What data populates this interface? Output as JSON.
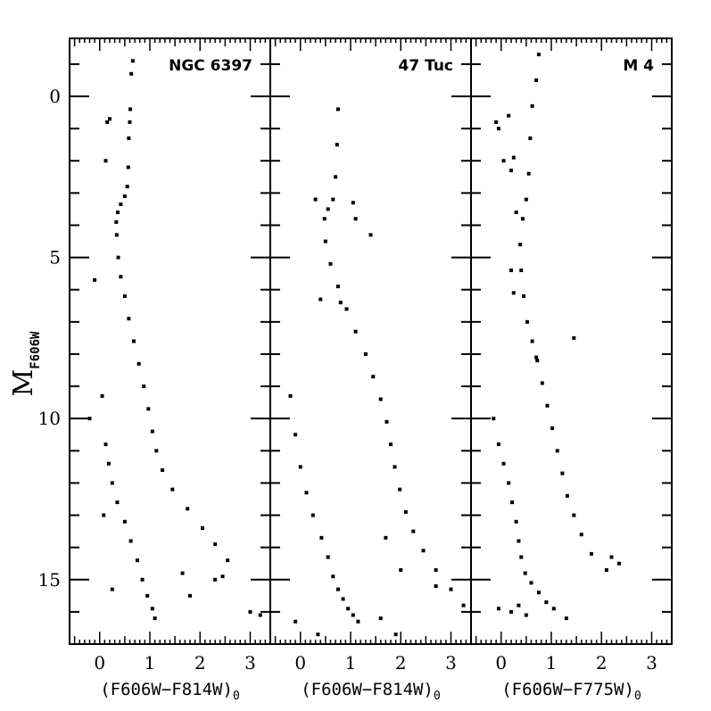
{
  "chart_data": {
    "type": "scatter",
    "ylabel": "M",
    "ylabel_sub": "F606W",
    "y_inverted": true,
    "ylim": [
      17,
      -1.8
    ],
    "xlim": [
      -0.6,
      3.4
    ],
    "xticks": [
      "0",
      "1",
      "2",
      "3"
    ],
    "yticks": [
      "0",
      "5",
      "10",
      "15"
    ],
    "panels": [
      {
        "title": "NGC 6397",
        "xlabel": "(F606W−F814W)",
        "xlabel_sub": "0",
        "series": [
          {
            "name": "",
            "points": [
              [
                0.66,
                -1.1
              ],
              [
                0.63,
                -0.7
              ],
              [
                0.61,
                0.4
              ],
              [
                0.6,
                0.8
              ],
              [
                0.58,
                1.3
              ],
              [
                0.57,
                2.2
              ],
              [
                0.55,
                2.8
              ],
              [
                0.5,
                3.1
              ],
              [
                0.42,
                3.35
              ],
              [
                0.36,
                3.6
              ],
              [
                0.33,
                3.9
              ],
              [
                0.34,
                4.3
              ],
              [
                0.37,
                5.0
              ],
              [
                0.42,
                5.6
              ],
              [
                0.5,
                6.2
              ],
              [
                0.58,
                6.9
              ],
              [
                0.68,
                7.6
              ],
              [
                0.78,
                8.3
              ],
              [
                0.88,
                9.0
              ],
              [
                0.97,
                9.7
              ],
              [
                1.05,
                10.4
              ],
              [
                1.13,
                11.0
              ],
              [
                1.25,
                11.6
              ],
              [
                1.45,
                12.2
              ],
              [
                1.75,
                12.8
              ],
              [
                2.05,
                13.4
              ],
              [
                2.3,
                13.9
              ],
              [
                2.55,
                14.4
              ],
              [
                0.12,
                10.8
              ],
              [
                0.18,
                11.4
              ],
              [
                0.25,
                12.0
              ],
              [
                0.35,
                12.6
              ],
              [
                0.5,
                13.2
              ],
              [
                0.62,
                13.8
              ],
              [
                0.75,
                14.4
              ],
              [
                0.85,
                15.0
              ],
              [
                0.95,
                15.5
              ],
              [
                1.05,
                15.9
              ],
              [
                1.1,
                16.2
              ],
              [
                0.15,
                0.8
              ],
              [
                0.12,
                2.0
              ],
              [
                0.2,
                0.7
              ],
              [
                -0.1,
                5.7
              ],
              [
                0.05,
                9.3
              ],
              [
                -0.2,
                10.0
              ],
              [
                0.08,
                13.0
              ],
              [
                0.25,
                15.3
              ],
              [
                1.65,
                14.8
              ],
              [
                2.3,
                15.0
              ],
              [
                2.45,
                14.9
              ],
              [
                1.8,
                15.5
              ],
              [
                3.0,
                16.0
              ],
              [
                3.2,
                16.1
              ]
            ]
          }
        ]
      },
      {
        "title": "47 Tuc",
        "xlabel": "(F606W−F814W)",
        "xlabel_sub": "0",
        "series": [
          {
            "name": "",
            "points": [
              [
                0.75,
                0.4
              ],
              [
                0.73,
                1.5
              ],
              [
                0.7,
                2.5
              ],
              [
                0.65,
                3.2
              ],
              [
                0.55,
                3.5
              ],
              [
                0.48,
                3.8
              ],
              [
                0.5,
                4.5
              ],
              [
                0.6,
                5.2
              ],
              [
                0.75,
                5.9
              ],
              [
                0.92,
                6.6
              ],
              [
                1.1,
                7.3
              ],
              [
                1.3,
                8.0
              ],
              [
                1.45,
                8.7
              ],
              [
                1.6,
                9.4
              ],
              [
                1.72,
                10.1
              ],
              [
                1.8,
                10.8
              ],
              [
                1.88,
                11.5
              ],
              [
                1.98,
                12.2
              ],
              [
                2.1,
                12.9
              ],
              [
                2.25,
                13.5
              ],
              [
                2.45,
                14.1
              ],
              [
                2.7,
                14.7
              ],
              [
                3.0,
                15.3
              ],
              [
                3.25,
                15.8
              ],
              [
                -0.2,
                9.3
              ],
              [
                -0.1,
                10.5
              ],
              [
                0.0,
                11.5
              ],
              [
                0.12,
                12.3
              ],
              [
                0.25,
                13.0
              ],
              [
                0.42,
                13.7
              ],
              [
                0.55,
                14.3
              ],
              [
                0.65,
                14.9
              ],
              [
                0.75,
                15.3
              ],
              [
                0.85,
                15.6
              ],
              [
                0.95,
                15.9
              ],
              [
                1.05,
                16.1
              ],
              [
                1.15,
                16.3
              ],
              [
                0.3,
                3.2
              ],
              [
                0.4,
                6.3
              ],
              [
                1.05,
                3.3
              ],
              [
                1.1,
                3.8
              ],
              [
                1.4,
                4.3
              ],
              [
                0.8,
                6.4
              ],
              [
                1.7,
                13.7
              ],
              [
                2.0,
                14.7
              ],
              [
                -0.1,
                16.3
              ],
              [
                0.35,
                16.7
              ],
              [
                1.6,
                16.2
              ],
              [
                1.9,
                16.7
              ],
              [
                2.7,
                15.2
              ]
            ]
          }
        ]
      },
      {
        "title": "M 4",
        "xlabel": "(F606W−F775W)",
        "xlabel_sub": "0",
        "series": [
          {
            "name": "",
            "points": [
              [
                0.75,
                -1.3
              ],
              [
                0.7,
                -0.5
              ],
              [
                0.62,
                0.3
              ],
              [
                0.58,
                1.3
              ],
              [
                0.55,
                2.4
              ],
              [
                0.5,
                3.2
              ],
              [
                0.43,
                3.8
              ],
              [
                0.38,
                4.6
              ],
              [
                0.4,
                5.4
              ],
              [
                0.45,
                6.2
              ],
              [
                0.52,
                7.0
              ],
              [
                0.62,
                7.6
              ],
              [
                0.72,
                8.2
              ],
              [
                0.82,
                8.9
              ],
              [
                0.92,
                9.6
              ],
              [
                1.02,
                10.3
              ],
              [
                1.12,
                11.0
              ],
              [
                1.22,
                11.7
              ],
              [
                1.32,
                12.4
              ],
              [
                1.45,
                13.0
              ],
              [
                1.6,
                13.6
              ],
              [
                1.8,
                14.2
              ],
              [
                2.1,
                14.7
              ],
              [
                -0.15,
                10.0
              ],
              [
                -0.05,
                10.8
              ],
              [
                0.05,
                11.4
              ],
              [
                0.15,
                12.0
              ],
              [
                0.22,
                12.6
              ],
              [
                0.3,
                13.2
              ],
              [
                0.35,
                13.8
              ],
              [
                0.4,
                14.3
              ],
              [
                0.48,
                14.8
              ],
              [
                0.6,
                15.1
              ],
              [
                0.75,
                15.4
              ],
              [
                0.9,
                15.7
              ],
              [
                1.05,
                15.9
              ],
              [
                -0.1,
                0.8
              ],
              [
                -0.05,
                1.0
              ],
              [
                0.15,
                0.6
              ],
              [
                0.25,
                1.9
              ],
              [
                0.2,
                2.3
              ],
              [
                0.05,
                2.0
              ],
              [
                0.3,
                3.6
              ],
              [
                0.2,
                5.4
              ],
              [
                0.25,
                6.1
              ],
              [
                1.45,
                7.5
              ],
              [
                0.7,
                8.1
              ],
              [
                -0.05,
                15.9
              ],
              [
                0.2,
                16.0
              ],
              [
                0.35,
                15.8
              ],
              [
                0.5,
                16.1
              ],
              [
                1.3,
                16.2
              ],
              [
                2.2,
                14.3
              ],
              [
                2.35,
                14.5
              ]
            ]
          }
        ]
      }
    ]
  }
}
